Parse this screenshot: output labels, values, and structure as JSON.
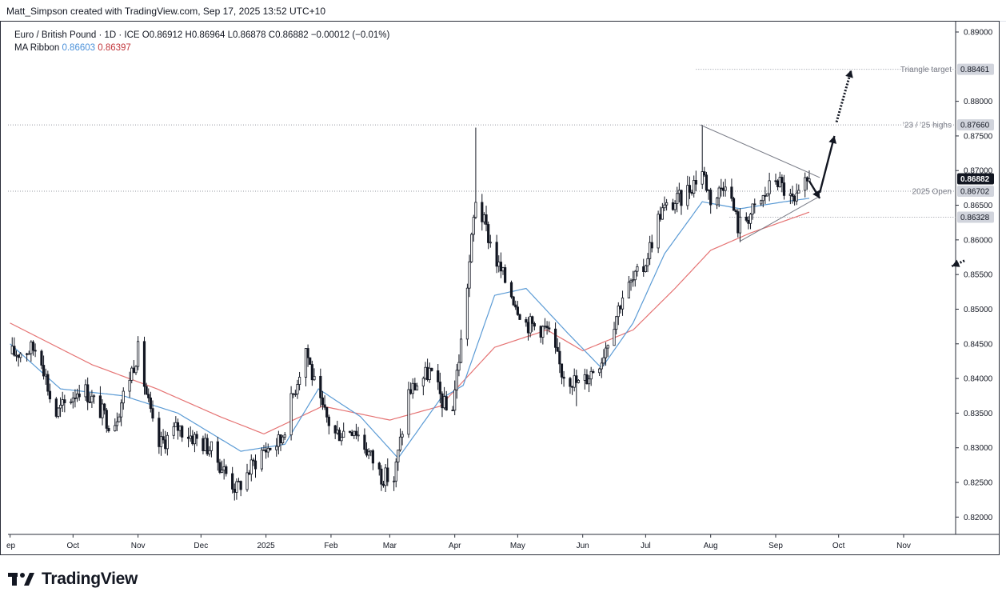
{
  "credit": "Matt_Simpson created with TradingView.com, Sep 17, 2025 13:52 UTC+10",
  "brand": "TradingView",
  "legend": {
    "symbol": "Euro / British Pound · 1D · ICE",
    "open": "O0.86912",
    "high": "H0.86964",
    "low": "L0.86878",
    "close": "C0.86882",
    "change": "−0.00012 (−0.01%)",
    "indicator": "MA Ribbon",
    "ma_fast": "0.86603",
    "ma_slow": "0.86397"
  },
  "colors": {
    "candle": "#131722",
    "ma_fast": "#5b9bd5",
    "ma_slow": "#e57373",
    "trendline": "#787b86",
    "level": "#9598a1",
    "arrow": "#131722"
  },
  "chart_data": {
    "type": "candlestick",
    "title": "Euro / British Pound · 1D · ICE",
    "ylim": [
      0.8175,
      0.8915
    ],
    "y_ticks": [
      "0.89000",
      "0.88000",
      "0.87500",
      "0.87000",
      "0.86500",
      "0.86000",
      "0.85500",
      "0.85000",
      "0.84500",
      "0.84000",
      "0.83500",
      "0.83000",
      "0.82500",
      "0.82000"
    ],
    "x_ticks": [
      "ep",
      "Oct",
      "Nov",
      "Dec",
      "2025",
      "Feb",
      "Mar",
      "Apr",
      "May",
      "Jun",
      "Jul",
      "Aug",
      "Sep",
      "Oct",
      "Nov"
    ],
    "price_path": [
      [
        "2024-09-01",
        0.8435
      ],
      [
        "2024-09-15",
        0.8445
      ],
      [
        "2024-09-22",
        0.8345
      ],
      [
        "2024-10-05",
        0.839
      ],
      [
        "2024-10-20",
        0.833
      ],
      [
        "2024-11-01",
        0.844
      ],
      [
        "2024-11-10",
        0.83
      ],
      [
        "2024-11-20",
        0.833
      ],
      [
        "2024-12-05",
        0.83
      ],
      [
        "2024-12-18",
        0.824
      ],
      [
        "2024-12-30",
        0.8295
      ],
      [
        "2025-01-08",
        0.831
      ],
      [
        "2025-01-20",
        0.8445
      ],
      [
        "2025-01-26",
        0.8365
      ],
      [
        "2025-02-03",
        0.832
      ],
      [
        "2025-02-12",
        0.833
      ],
      [
        "2025-02-25",
        0.826
      ],
      [
        "2025-03-03",
        0.8255
      ],
      [
        "2025-03-10",
        0.838
      ],
      [
        "2025-03-20",
        0.841
      ],
      [
        "2025-03-30",
        0.834
      ],
      [
        "2025-04-05",
        0.8475
      ],
      [
        "2025-04-11",
        0.866
      ],
      [
        "2025-04-22",
        0.856
      ],
      [
        "2025-05-05",
        0.848
      ],
      [
        "2025-05-15",
        0.847
      ],
      [
        "2025-05-22",
        0.841
      ],
      [
        "2025-05-31",
        0.839
      ],
      [
        "2025-06-10",
        0.843
      ],
      [
        "2025-06-20",
        0.852
      ],
      [
        "2025-06-30",
        0.856
      ],
      [
        "2025-07-08",
        0.864
      ],
      [
        "2025-07-18",
        0.866
      ],
      [
        "2025-07-28",
        0.87
      ],
      [
        "2025-08-02",
        0.865
      ],
      [
        "2025-08-08",
        0.869
      ],
      [
        "2025-08-14",
        0.862
      ],
      [
        "2025-08-24",
        0.865
      ],
      [
        "2025-09-01",
        0.869
      ],
      [
        "2025-09-10",
        0.865
      ],
      [
        "2025-09-17",
        0.8688
      ]
    ],
    "ma_fast_path": [
      [
        "2024-09-01",
        0.845
      ],
      [
        "2024-09-25",
        0.8385
      ],
      [
        "2024-10-25",
        0.8375
      ],
      [
        "2024-11-20",
        0.835
      ],
      [
        "2024-12-20",
        0.8295
      ],
      [
        "2025-01-10",
        0.8305
      ],
      [
        "2025-01-26",
        0.8385
      ],
      [
        "2025-02-15",
        0.8345
      ],
      [
        "2025-03-05",
        0.8285
      ],
      [
        "2025-03-25",
        0.837
      ],
      [
        "2025-04-05",
        0.839
      ],
      [
        "2025-04-20",
        0.852
      ],
      [
        "2025-05-05",
        0.853
      ],
      [
        "2025-05-25",
        0.8465
      ],
      [
        "2025-06-10",
        0.8415
      ],
      [
        "2025-06-25",
        0.848
      ],
      [
        "2025-07-10",
        0.858
      ],
      [
        "2025-07-28",
        0.8655
      ],
      [
        "2025-08-15",
        0.8645
      ],
      [
        "2025-09-05",
        0.8655
      ],
      [
        "2025-09-17",
        0.866
      ]
    ],
    "ma_slow_path": [
      [
        "2024-09-01",
        0.848
      ],
      [
        "2024-10-10",
        0.842
      ],
      [
        "2024-11-10",
        0.8385
      ],
      [
        "2024-12-10",
        0.8345
      ],
      [
        "2024-12-31",
        0.832
      ],
      [
        "2025-01-28",
        0.836
      ],
      [
        "2025-03-01",
        0.834
      ],
      [
        "2025-03-25",
        0.836
      ],
      [
        "2025-04-20",
        0.8445
      ],
      [
        "2025-05-15",
        0.847
      ],
      [
        "2025-06-01",
        0.844
      ],
      [
        "2025-06-25",
        0.847
      ],
      [
        "2025-07-15",
        0.853
      ],
      [
        "2025-08-01",
        0.8585
      ],
      [
        "2025-08-20",
        0.861
      ],
      [
        "2025-09-17",
        0.864
      ]
    ],
    "annotations": [
      {
        "label": "Triangle target",
        "value": "0.88461"
      },
      {
        "label": "'23 / '25 highs",
        "value": "0.87660"
      },
      {
        "label": "2025 Open",
        "value": "0.86702"
      },
      {
        "label": "",
        "value": "0.86328"
      }
    ],
    "last_price": "0.86882",
    "triangle": {
      "upper": [
        [
          "2025-07-27",
          0.8766
        ],
        [
          "2025-09-22",
          0.869
        ]
      ],
      "lower": [
        [
          "2025-08-15",
          0.8598
        ],
        [
          "2025-09-22",
          0.8663
        ]
      ]
    },
    "arrows": [
      {
        "from": [
          "2025-09-17",
          0.8685
        ],
        "to": [
          "2025-09-22",
          0.866
        ],
        "style": "solid"
      },
      {
        "from": [
          "2025-09-22",
          0.8668
        ],
        "to": [
          "2025-09-29",
          0.875
        ],
        "style": "solid"
      },
      {
        "from": [
          "2025-09-30",
          0.877
        ],
        "to": [
          "2025-10-07",
          0.8845
        ],
        "style": "dotted"
      },
      {
        "from": [
          "2025-11-30",
          0.857
        ],
        "to": [
          "2025-11-24",
          0.8562
        ],
        "style": "dotted"
      }
    ]
  }
}
